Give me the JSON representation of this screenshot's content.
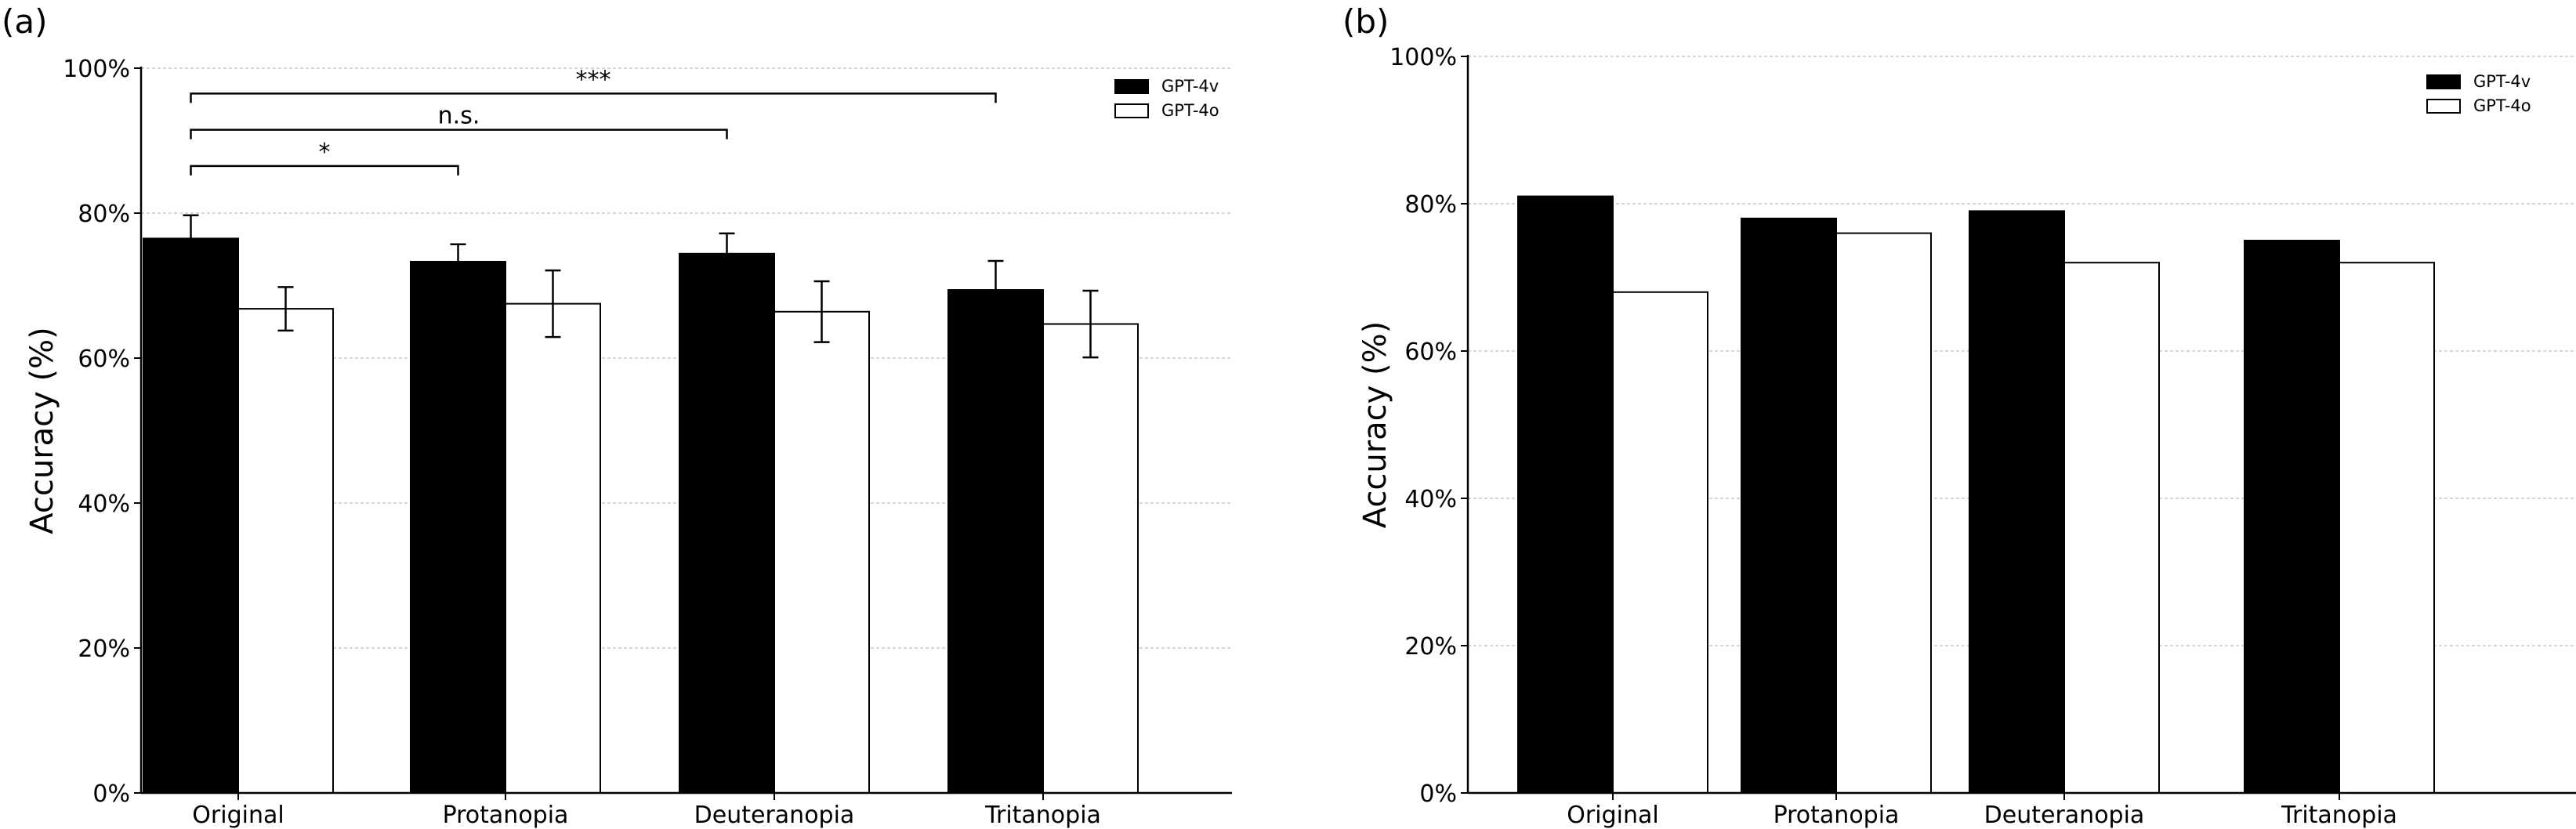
{
  "chart_data": [
    {
      "type": "bar",
      "panel_label": "(a)",
      "ylabel": "Accuracy (%)",
      "categories": [
        "Original",
        "Protanopia",
        "Deuteranopia",
        "Tritanopia"
      ],
      "ylim": [
        0,
        100
      ],
      "yticks": [
        "0%",
        "20%",
        "40%",
        "60%",
        "80%",
        "100%"
      ],
      "grid": true,
      "legend": "top-right",
      "series": [
        {
          "name": "GPT-4v",
          "color": "#000000",
          "values": [
            76.5,
            73.3,
            74.4,
            69.4
          ],
          "errors": [
            3.2,
            2.4,
            2.8,
            4.0
          ]
        },
        {
          "name": "GPT-4o",
          "color": "#ffffff",
          "values": [
            66.8,
            67.5,
            66.4,
            64.7
          ],
          "errors": [
            3.0,
            4.6,
            4.2,
            4.6
          ]
        }
      ],
      "annotations": [
        {
          "from": "Original",
          "to": "Protanopia",
          "label": "*",
          "y": 86.5
        },
        {
          "from": "Original",
          "to": "Deuteranopia",
          "label": "n.s.",
          "y": 91.5
        },
        {
          "from": "Original",
          "to": "Tritanopia",
          "label": "***",
          "y": 96.5
        }
      ]
    },
    {
      "type": "bar",
      "panel_label": "(b)",
      "ylabel": "Accuracy (%)",
      "categories": [
        "Original",
        "Protanopia",
        "Deuteranopia",
        "Tritanopia"
      ],
      "ylim": [
        0,
        100
      ],
      "yticks": [
        "0%",
        "20%",
        "40%",
        "60%",
        "80%",
        "100%"
      ],
      "grid": true,
      "legend": "top-right",
      "series": [
        {
          "name": "GPT-4v",
          "color": "#000000",
          "values": [
            81,
            78,
            79,
            75
          ]
        },
        {
          "name": "GPT-4o",
          "color": "#ffffff",
          "values": [
            68,
            76,
            72,
            72
          ]
        }
      ]
    }
  ]
}
